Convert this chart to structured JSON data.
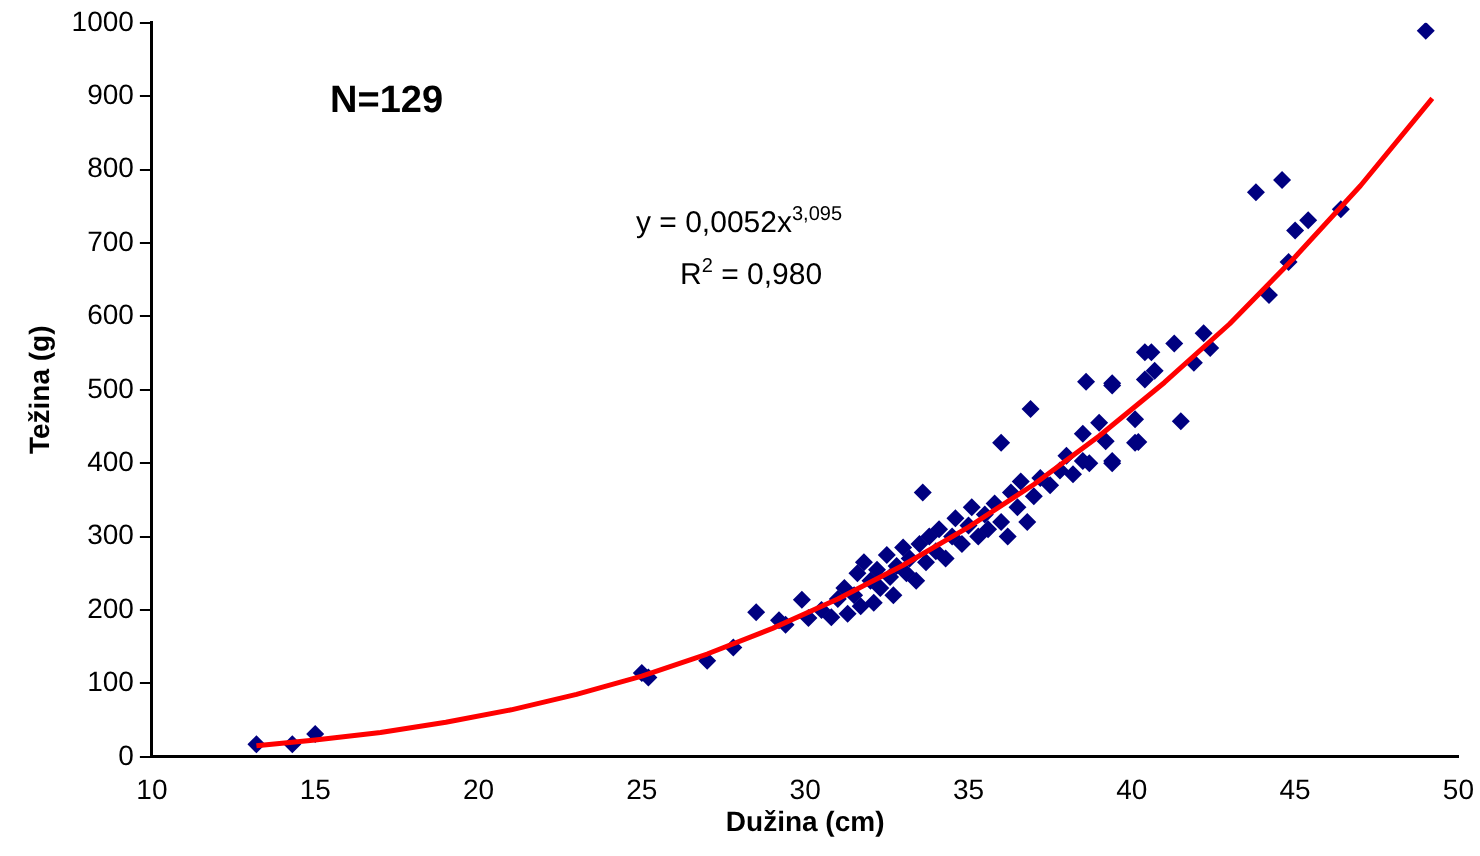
{
  "chart_data": {
    "type": "scatter",
    "xlabel": "Dužina (cm)",
    "ylabel": "Težina (g)",
    "xlim": [
      10,
      50
    ],
    "xticks": [
      10,
      15,
      20,
      25,
      30,
      35,
      40,
      45,
      50
    ],
    "ylim": [
      0,
      1000
    ],
    "yticks": [
      0,
      100,
      200,
      300,
      400,
      500,
      600,
      700,
      800,
      900,
      1000
    ],
    "grid": false,
    "legend": false,
    "annotations": [
      "N=129",
      "y = 0,0052x$^{3,095}$",
      "R$^{2}$ = 0,980"
    ],
    "series": [
      {
        "type": "scatter",
        "marker": "diamond",
        "color": "#000080",
        "x": [
          13.2,
          14.3,
          15.0,
          25.0,
          25.2,
          27.0,
          27.8,
          28.5,
          29.2,
          29.4,
          29.9,
          30.1,
          30.5,
          30.8,
          31.0,
          31.2,
          31.3,
          31.5,
          31.6,
          31.7,
          31.8,
          32.0,
          32.1,
          32.2,
          32.3,
          32.5,
          32.6,
          32.7,
          32.8,
          33.0,
          33.1,
          33.2,
          33.4,
          33.5,
          33.6,
          33.7,
          33.8,
          34.0,
          34.1,
          34.3,
          34.5,
          34.6,
          34.8,
          35.0,
          35.1,
          35.3,
          35.5,
          35.6,
          35.8,
          36.0,
          36.0,
          36.2,
          36.3,
          36.5,
          36.6,
          36.8,
          36.9,
          37.0,
          37.2,
          37.5,
          37.8,
          38.0,
          38.2,
          38.5,
          38.5,
          38.6,
          38.7,
          39.0,
          39.2,
          39.4,
          39.4,
          39.4,
          39.4,
          40.1,
          40.1,
          40.2,
          40.4,
          40.4,
          40.6,
          40.7,
          41.3,
          41.5,
          41.9,
          42.2,
          42.4,
          43.8,
          44.2,
          44.6,
          44.8,
          45.0,
          45.4,
          46.4,
          49.0
        ],
        "values": [
          17,
          17,
          31,
          114,
          108,
          131,
          149,
          197,
          186,
          180,
          214,
          189,
          200,
          190,
          215,
          230,
          195,
          220,
          250,
          205,
          265,
          240,
          210,
          255,
          230,
          275,
          245,
          220,
          260,
          285,
          250,
          270,
          240,
          290,
          360,
          265,
          300,
          280,
          310,
          270,
          300,
          325,
          290,
          315,
          340,
          300,
          330,
          310,
          345,
          320,
          428,
          300,
          360,
          340,
          375,
          320,
          474,
          355,
          380,
          370,
          390,
          410,
          385,
          440,
          403,
          511,
          400,
          455,
          430,
          506,
          403,
          400,
          509,
          428,
          460,
          429,
          551,
          514,
          551,
          526,
          563,
          457,
          537,
          577,
          557,
          769,
          629,
          786,
          674,
          717,
          731,
          746,
          989
        ]
      },
      {
        "type": "line",
        "marker": "none",
        "color": "#ff0000",
        "x": [
          13.2,
          15,
          17,
          19,
          21,
          23,
          25,
          27,
          29,
          31,
          33,
          35,
          37,
          39,
          41,
          43,
          45,
          47,
          49.2
        ],
        "values": [
          15,
          23,
          33,
          47,
          64,
          85,
          110,
          140,
          175,
          215,
          261,
          313,
          371,
          437,
          510,
          590,
          681,
          778,
          897
        ]
      }
    ]
  }
}
